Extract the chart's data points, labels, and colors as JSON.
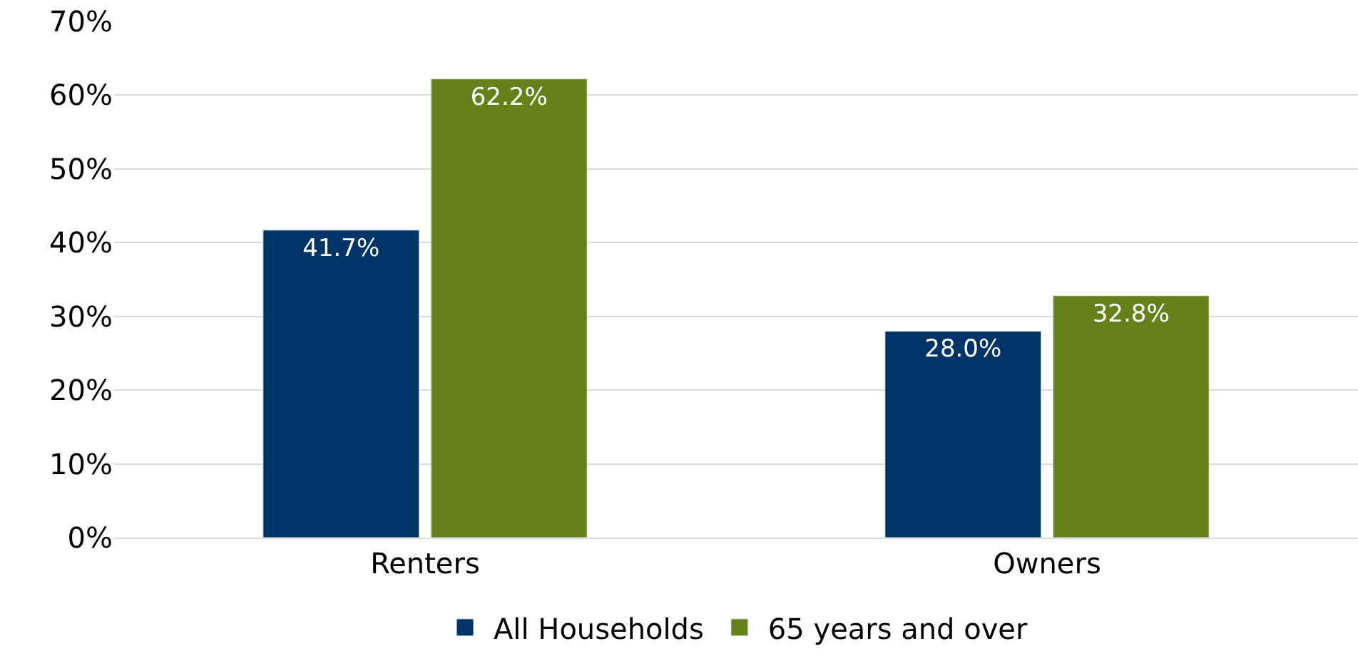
{
  "chart_data": {
    "type": "bar",
    "categories": [
      "Renters",
      "Owners"
    ],
    "series": [
      {
        "name": "All Households",
        "color": "#003366",
        "values": [
          41.7,
          28.0
        ],
        "value_labels": [
          "41.7%",
          "28.0%"
        ]
      },
      {
        "name": "65 years and over",
        "color": "#648219",
        "values": [
          62.2,
          32.8
        ],
        "value_labels": [
          "62.2%",
          "32.8%"
        ]
      }
    ],
    "ylim": [
      0,
      70
    ],
    "yticks": [
      {
        "value": 0,
        "label": "0%"
      },
      {
        "value": 10,
        "label": "10%"
      },
      {
        "value": 20,
        "label": "20%"
      },
      {
        "value": 30,
        "label": "30%"
      },
      {
        "value": 40,
        "label": "40%"
      },
      {
        "value": 50,
        "label": "50%"
      },
      {
        "value": 60,
        "label": "60%"
      },
      {
        "value": 70,
        "label": "70%"
      }
    ],
    "grid": "y",
    "legend": "bottom"
  }
}
